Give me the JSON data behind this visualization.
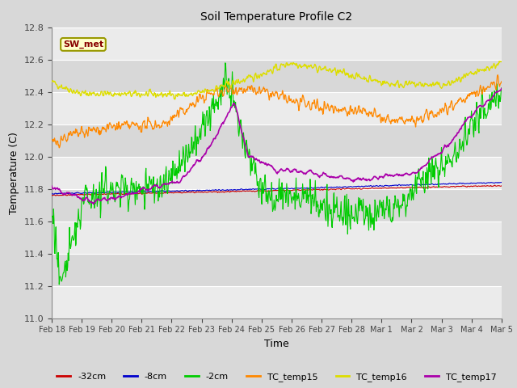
{
  "title": "Soil Temperature Profile C2",
  "xlabel": "Time",
  "ylabel": "Temperature (C)",
  "ylim": [
    11.0,
    12.8
  ],
  "yticks": [
    11.0,
    11.2,
    11.4,
    11.6,
    11.8,
    12.0,
    12.2,
    12.4,
    12.6,
    12.8
  ],
  "date_labels": [
    "Feb 18",
    "Feb 19",
    "Feb 20",
    "Feb 21",
    "Feb 22",
    "Feb 23",
    "Feb 24",
    "Feb 25",
    "Feb 26",
    "Feb 27",
    "Feb 28",
    "Mar 1",
    "Mar 2",
    "Mar 3",
    "Mar 4",
    "Mar 5"
  ],
  "legend_labels": [
    "-32cm",
    "-8cm",
    "-2cm",
    "TC_temp15",
    "TC_temp16",
    "TC_temp17"
  ],
  "legend_colors": [
    "#cc0000",
    "#0000cc",
    "#00cc00",
    "#ff8800",
    "#dddd00",
    "#aa00aa"
  ],
  "sw_met_box_facecolor": "#ffffcc",
  "sw_met_text_color": "#880000",
  "sw_met_border_color": "#999900",
  "plot_bg_color": "#d8d8d8",
  "fig_bg_color": "#d8d8d8",
  "n_points": 960
}
